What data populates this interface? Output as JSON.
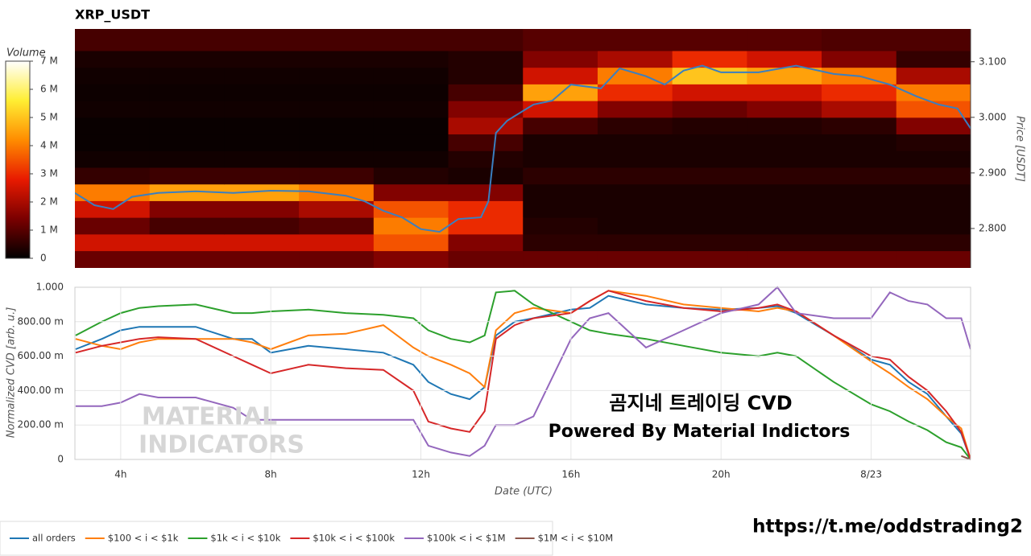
{
  "chart_data": [
    {
      "type": "heatmap",
      "title": "XRP_USDT",
      "xlim": [
        2.78,
        26.65
      ],
      "xbins": [
        2.78,
        4.77,
        6.76,
        8.75,
        10.74,
        12.73,
        14.72,
        16.71,
        18.7,
        20.69,
        22.68,
        24.67,
        26.65
      ],
      "ybins": [
        2.729,
        2.76,
        2.79,
        2.82,
        2.85,
        2.88,
        2.91,
        2.94,
        2.97,
        3.0,
        3.03,
        3.06,
        3.09,
        3.12,
        3.159
      ],
      "z": [
        [
          1200000,
          1200000,
          1200000,
          1200000,
          1500000,
          1200000,
          1200000,
          1200000,
          1200000,
          1200000,
          1200000,
          1200000
        ],
        [
          2500000,
          2500000,
          2500000,
          2500000,
          3500000,
          1500000,
          500000,
          500000,
          500000,
          500000,
          500000,
          500000
        ],
        [
          1200000,
          800000,
          800000,
          1000000,
          4000000,
          3000000,
          400000,
          300000,
          300000,
          300000,
          300000,
          300000
        ],
        [
          2500000,
          1500000,
          1500000,
          2000000,
          3500000,
          3000000,
          300000,
          300000,
          300000,
          300000,
          300000,
          300000
        ],
        [
          4000000,
          4500000,
          4500000,
          4000000,
          1500000,
          1500000,
          300000,
          300000,
          300000,
          300000,
          300000,
          300000
        ],
        [
          600000,
          700000,
          700000,
          700000,
          400000,
          300000,
          500000,
          500000,
          500000,
          500000,
          500000,
          500000
        ],
        [
          200000,
          200000,
          200000,
          200000,
          200000,
          400000,
          300000,
          300000,
          300000,
          300000,
          300000,
          300000
        ],
        [
          100000,
          100000,
          100000,
          100000,
          100000,
          800000,
          300000,
          300000,
          300000,
          300000,
          300000,
          400000
        ],
        [
          100000,
          100000,
          100000,
          100000,
          100000,
          2000000,
          800000,
          500000,
          400000,
          400000,
          500000,
          1500000
        ],
        [
          200000,
          200000,
          200000,
          200000,
          200000,
          1500000,
          2500000,
          1500000,
          1200000,
          1500000,
          2000000,
          3500000
        ],
        [
          150000,
          150000,
          150000,
          150000,
          150000,
          800000,
          4500000,
          3000000,
          2500000,
          2500000,
          3000000,
          4000000
        ],
        [
          200000,
          200000,
          200000,
          200000,
          200000,
          400000,
          2500000,
          4000000,
          5000000,
          4500000,
          4000000,
          2000000
        ],
        [
          300000,
          300000,
          300000,
          300000,
          300000,
          400000,
          1500000,
          2000000,
          3000000,
          2500000,
          1500000,
          600000
        ],
        [
          800000,
          800000,
          800000,
          800000,
          800000,
          800000,
          1000000,
          1000000,
          1000000,
          1000000,
          900000,
          900000
        ]
      ],
      "zlim": [
        0,
        7000000
      ],
      "zticks": [
        0,
        {
          "value": 1000000,
          "label": "1 M"
        },
        {
          "value": 2000000,
          "label": "2 M"
        },
        {
          "value": 3000000,
          "label": "3 M"
        },
        {
          "value": 4000000,
          "label": "4 M"
        },
        {
          "value": 5000000,
          "label": "5 M"
        },
        {
          "value": 6000000,
          "label": "6 M"
        },
        {
          "value": 7000000,
          "label": "7 M"
        }
      ],
      "colorbar_label": "Volume",
      "colorscale": [
        "#000000",
        "#7a0000",
        "#e81a00",
        "#ff8c00",
        "#ffee33",
        "#ffffff"
      ],
      "ylabel": "Price [USDT]",
      "ylim": [
        2.729,
        3.159
      ],
      "yticks": [
        {
          "value": 2.8,
          "label": "2.800"
        },
        {
          "value": 2.9,
          "label": "2.900"
        },
        {
          "value": 3.0,
          "label": "3.000"
        },
        {
          "value": 3.1,
          "label": "3.100"
        }
      ],
      "price": {
        "color": "#3a7fc0",
        "x": [
          2.78,
          3.3,
          3.8,
          4.3,
          5,
          6,
          7,
          8,
          9,
          10,
          10.5,
          11,
          11.5,
          12,
          12.5,
          13,
          13.6,
          13.8,
          14,
          14.3,
          15,
          15.5,
          16,
          16.8,
          17.3,
          18,
          18.5,
          19,
          19.5,
          20,
          21,
          22,
          23,
          23.7,
          24.5,
          25.2,
          25.8,
          26.3,
          26.65
        ],
        "values": [
          2.864,
          2.842,
          2.835,
          2.857,
          2.864,
          2.867,
          2.864,
          2.868,
          2.867,
          2.859,
          2.849,
          2.832,
          2.82,
          2.799,
          2.794,
          2.817,
          2.82,
          2.849,
          2.972,
          2.994,
          3.023,
          3.03,
          3.059,
          3.052,
          3.088,
          3.074,
          3.059,
          3.084,
          3.093,
          3.081,
          3.081,
          3.093,
          3.078,
          3.074,
          3.059,
          3.038,
          3.023,
          3.016,
          2.98
        ]
      }
    },
    {
      "type": "line",
      "xlabel": "Date (UTC)",
      "ylabel": "Normalized CVD [arb. u.]",
      "xlim": [
        2.78,
        26.65
      ],
      "xticks": [
        {
          "value": 4,
          "label": "4h"
        },
        {
          "value": 8,
          "label": "8h"
        },
        {
          "value": 12,
          "label": "12h"
        },
        {
          "value": 16,
          "label": "16h"
        },
        {
          "value": 20,
          "label": "20h"
        },
        {
          "value": 24,
          "label": "8/23"
        }
      ],
      "ylim": [
        0,
        1
      ],
      "yticks": [
        0,
        {
          "value": 0.2,
          "label": "200.00 m"
        },
        {
          "value": 0.4,
          "label": "400.00 m"
        },
        {
          "value": 0.6,
          "label": "600.00 m"
        },
        {
          "value": 0.8,
          "label": "800.00 m"
        },
        {
          "value": 1,
          "label": "1.000"
        }
      ],
      "grid": true,
      "x": [
        2.8,
        3.5,
        4,
        4.5,
        5,
        6,
        7,
        7.5,
        8,
        9,
        10,
        11,
        11.8,
        12.2,
        12.8,
        13.3,
        13.7,
        14,
        14.5,
        15,
        16,
        16.5,
        17,
        18,
        19,
        20,
        21,
        21.5,
        22,
        23,
        24,
        24.5,
        25,
        25.5,
        26,
        26.4,
        26.65
      ],
      "series": [
        {
          "name": "all orders",
          "color": "#1f77b4",
          "values": [
            0.64,
            0.7,
            0.75,
            0.77,
            0.77,
            0.77,
            0.7,
            0.7,
            0.62,
            0.66,
            0.64,
            0.62,
            0.55,
            0.45,
            0.38,
            0.35,
            0.42,
            0.72,
            0.8,
            0.82,
            0.87,
            0.88,
            0.95,
            0.9,
            0.88,
            0.87,
            0.88,
            0.89,
            0.85,
            0.72,
            0.58,
            0.55,
            0.45,
            0.38,
            0.25,
            0.15,
            0.0
          ]
        },
        {
          "name": "$100 < i < $1k",
          "color": "#ff7f0e",
          "values": [
            0.7,
            0.66,
            0.64,
            0.68,
            0.7,
            0.7,
            0.7,
            0.68,
            0.64,
            0.72,
            0.73,
            0.78,
            0.65,
            0.6,
            0.55,
            0.5,
            0.42,
            0.75,
            0.85,
            0.88,
            0.85,
            0.92,
            0.98,
            0.95,
            0.9,
            0.88,
            0.86,
            0.88,
            0.86,
            0.72,
            0.57,
            0.5,
            0.42,
            0.35,
            0.25,
            0.18,
            0.0
          ]
        },
        {
          "name": "$1k < i < $10k",
          "color": "#2ca02c",
          "values": [
            0.72,
            0.8,
            0.85,
            0.88,
            0.89,
            0.9,
            0.85,
            0.85,
            0.86,
            0.87,
            0.85,
            0.84,
            0.82,
            0.75,
            0.7,
            0.68,
            0.72,
            0.97,
            0.98,
            0.9,
            0.8,
            0.75,
            0.73,
            0.7,
            0.66,
            0.62,
            0.6,
            0.62,
            0.6,
            0.45,
            0.32,
            0.28,
            0.22,
            0.17,
            0.1,
            0.07,
            0.0
          ]
        },
        {
          "name": "$10k < i < $100k",
          "color": "#d62728",
          "values": [
            0.62,
            0.66,
            0.68,
            0.7,
            0.71,
            0.7,
            0.6,
            0.55,
            0.5,
            0.55,
            0.53,
            0.52,
            0.4,
            0.22,
            0.18,
            0.16,
            0.28,
            0.7,
            0.78,
            0.82,
            0.85,
            0.92,
            0.98,
            0.92,
            0.88,
            0.86,
            0.88,
            0.9,
            0.86,
            0.72,
            0.6,
            0.58,
            0.48,
            0.4,
            0.28,
            0.16,
            0.0
          ]
        },
        {
          "name": "$100k < i < $1M",
          "color": "#9467bd",
          "values": [
            0.31,
            0.31,
            0.33,
            0.38,
            0.36,
            0.36,
            0.3,
            0.23,
            0.23,
            0.23,
            0.23,
            0.23,
            0.23,
            0.08,
            0.04,
            0.02,
            0.08,
            0.2,
            0.2,
            0.25,
            0.7,
            0.82,
            0.85,
            0.65,
            0.75,
            0.85,
            0.9,
            1.0,
            0.85,
            0.82,
            0.82,
            0.97,
            0.92,
            0.9,
            0.82,
            0.82,
            0.64
          ]
        },
        {
          "name": "$1M < i < $10M",
          "color": "#8c564b",
          "values": [
            null,
            null,
            null,
            null,
            null,
            null,
            null,
            null,
            null,
            null,
            null,
            null,
            null,
            null,
            null,
            null,
            null,
            null,
            null,
            null,
            null,
            null,
            null,
            null,
            null,
            null,
            null,
            null,
            null,
            null,
            null,
            null,
            null,
            null,
            null,
            0.02,
            0.0
          ]
        }
      ],
      "annotations": [
        "MATERIAL",
        "INDICATORS",
        "곰지네 트레이딩 CVD",
        "Powered By Material Indictors",
        "https://t.me/oddstrading2"
      ]
    }
  ]
}
